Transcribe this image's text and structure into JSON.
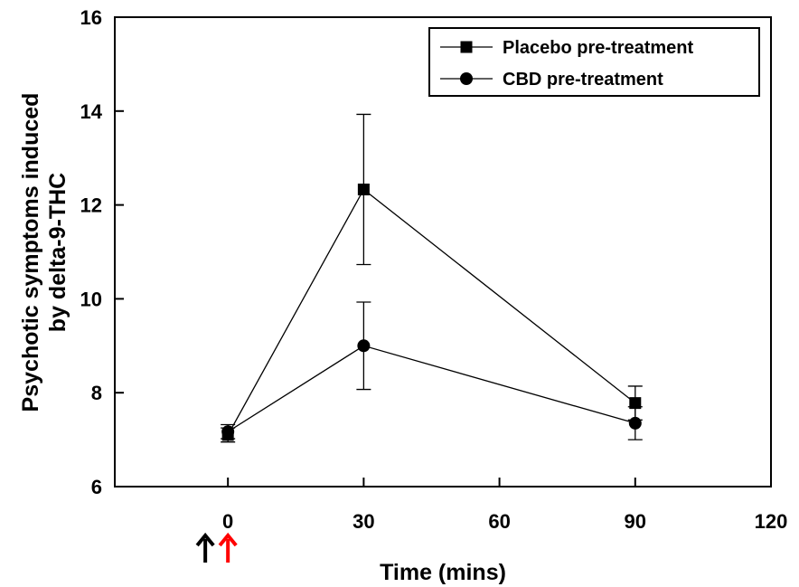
{
  "chart_data": {
    "type": "line",
    "title": "",
    "xlabel": "Time (mins)",
    "ylabel_lines": [
      "Psychotic symptoms induced",
      "by delta-9-THC"
    ],
    "xlim": [
      -25,
      120
    ],
    "ylim": [
      6,
      16
    ],
    "xticks": [
      0,
      30,
      60,
      90,
      120
    ],
    "yticks": [
      6,
      8,
      10,
      12,
      14,
      16
    ],
    "x": [
      0,
      30,
      90
    ],
    "series": [
      {
        "name": "Placebo pre-treatment",
        "marker": "square",
        "values": [
          7.1,
          12.33,
          7.78
        ],
        "error": [
          0.15,
          1.6,
          0.36
        ]
      },
      {
        "name": "CBD pre-treatment",
        "marker": "circle",
        "values": [
          7.17,
          9.0,
          7.35
        ],
        "error": [
          0.15,
          0.93,
          0.35
        ]
      }
    ],
    "legend_position": "top-right",
    "annotations": {
      "arrows": [
        {
          "x": -5,
          "color": "#000000",
          "direction": "up"
        },
        {
          "x": 0,
          "color": "#ff0000",
          "direction": "up"
        }
      ]
    }
  }
}
